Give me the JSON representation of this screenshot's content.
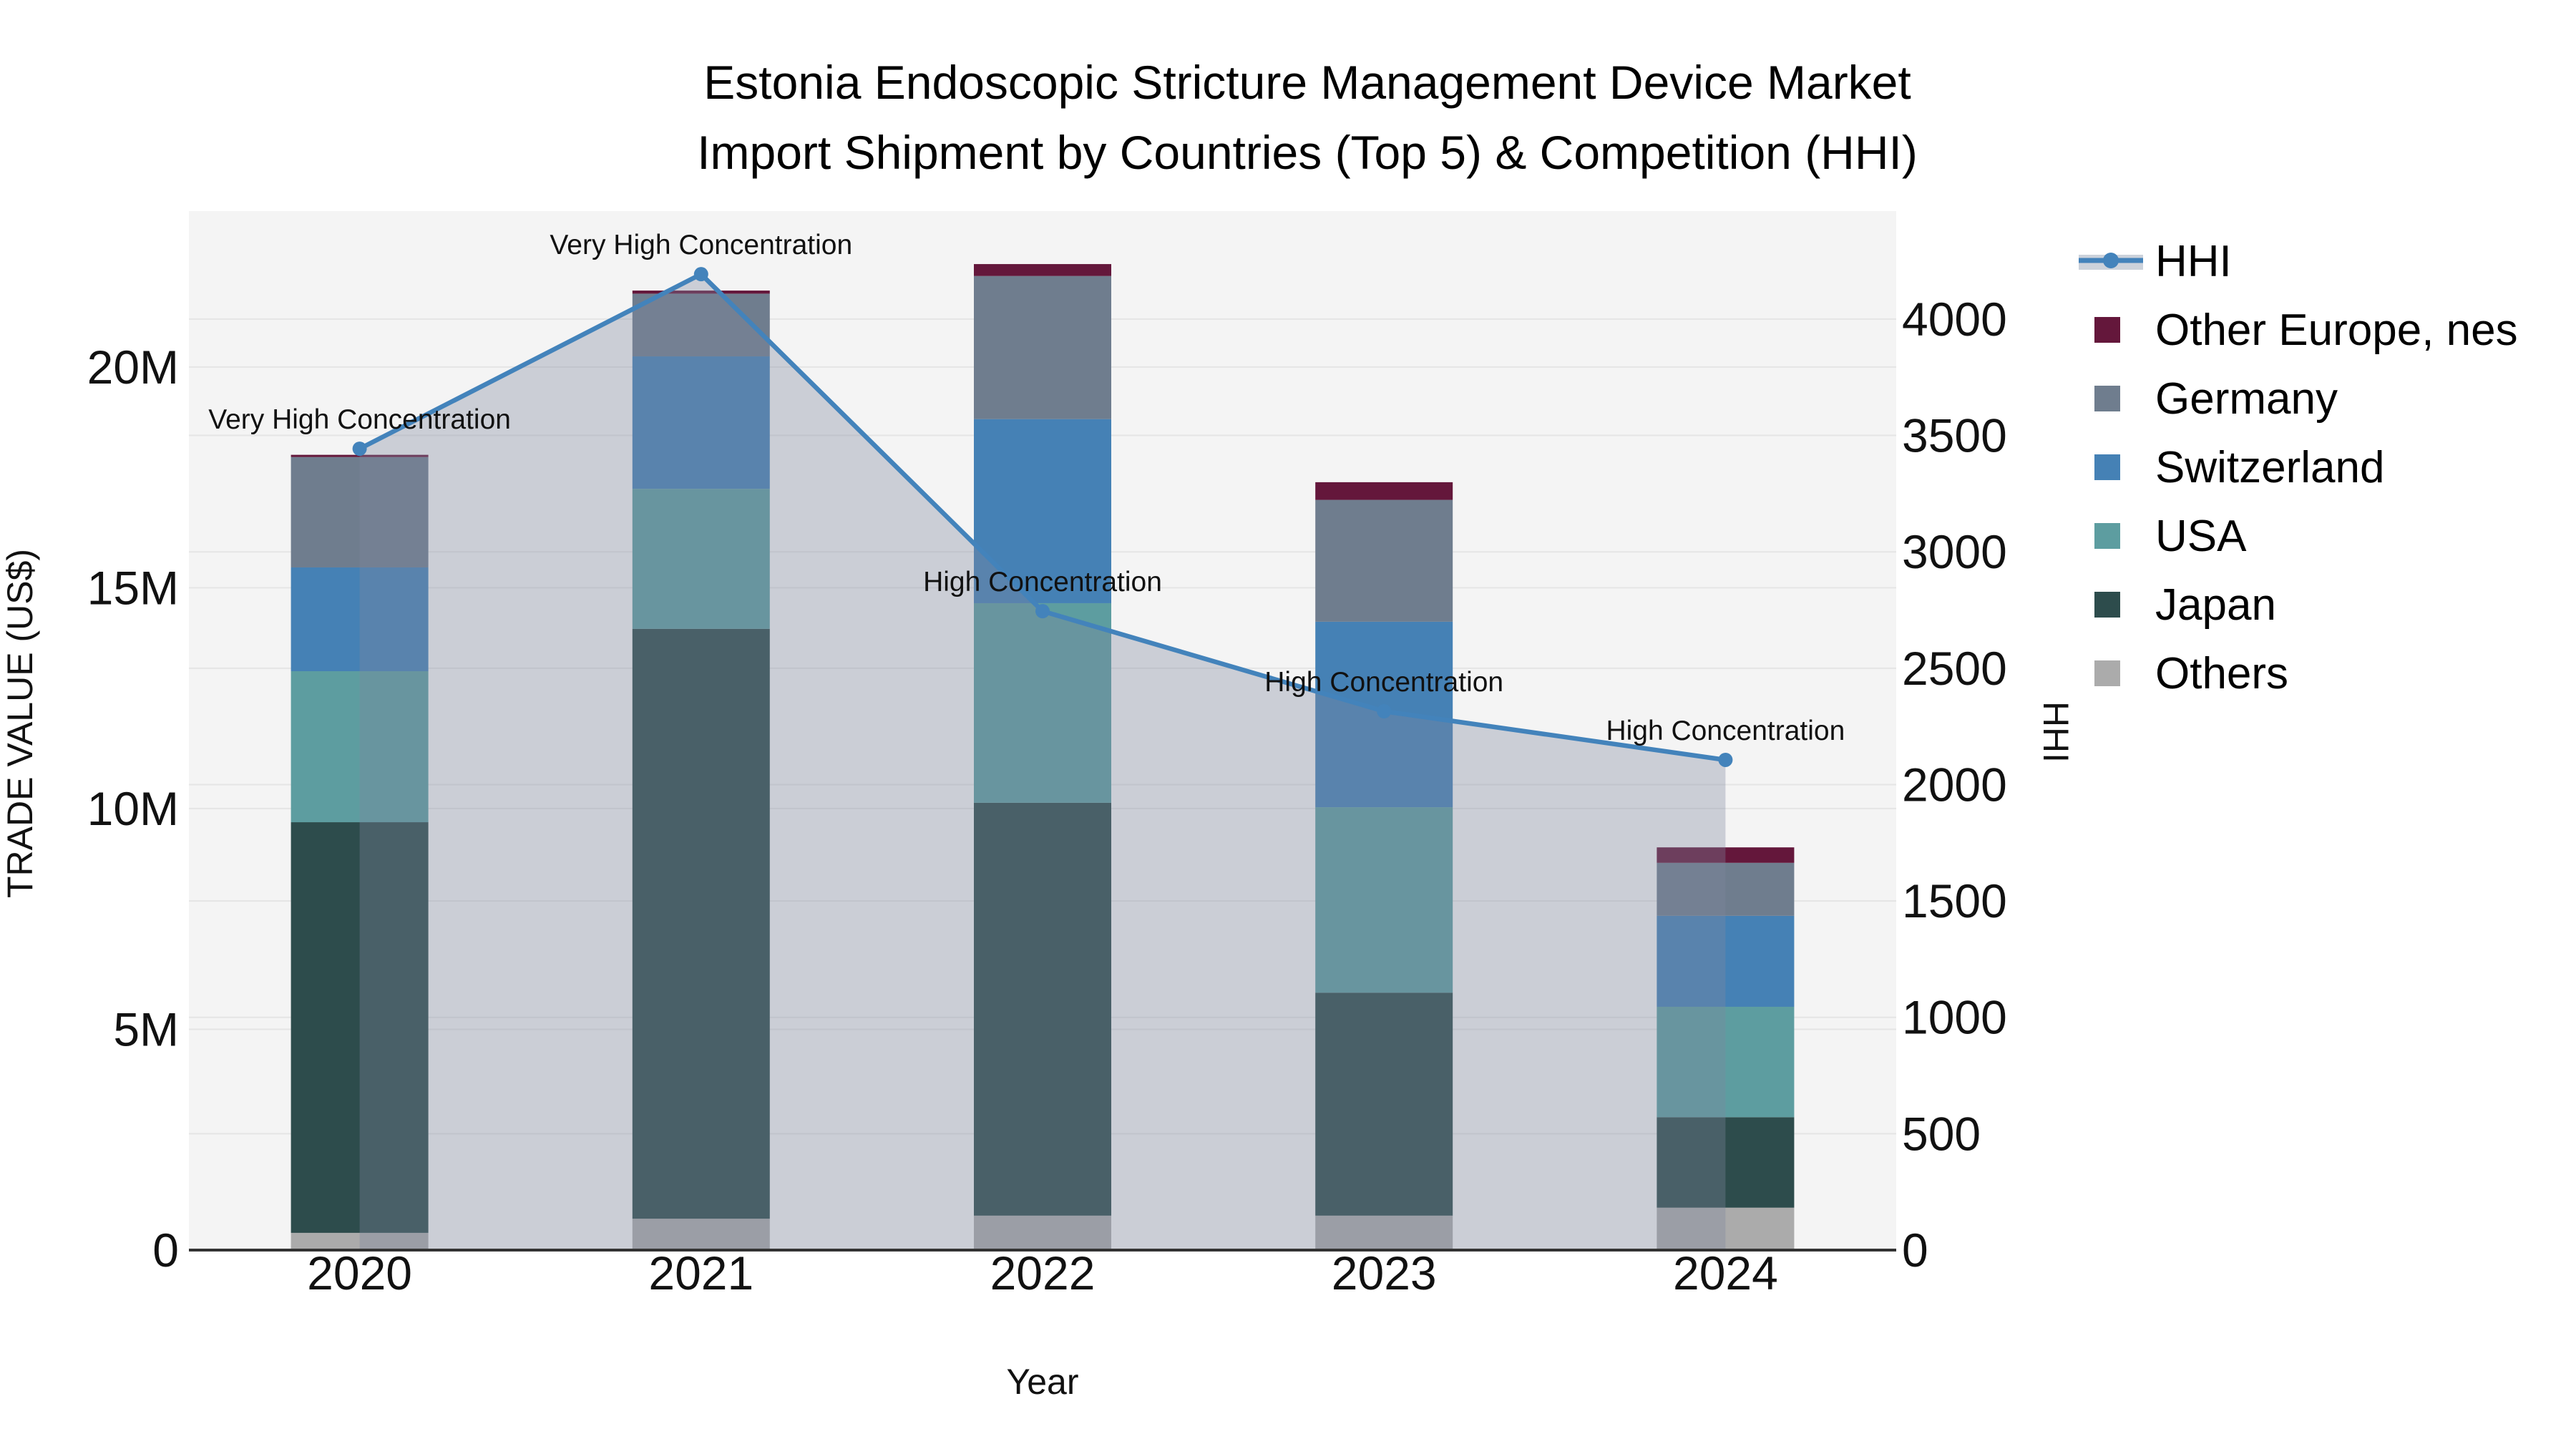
{
  "title": {
    "line1": "Estonia Endoscopic Stricture Management Device Market",
    "line2": "Import Shipment by Countries (Top 5) & Competition (HHI)"
  },
  "chart_data": {
    "type": "stacked-bar+line",
    "unit": "Trade value in US$ millions (left axis); HHI index (right axis)",
    "categories": [
      "2020",
      "2021",
      "2022",
      "2023",
      "2024"
    ],
    "axes": {
      "x": {
        "title": "Year"
      },
      "left": {
        "title": "TRADE VALUE (US$)",
        "tick_labels": [
          "0",
          "5M",
          "10M",
          "15M",
          "20M"
        ],
        "tick_values": [
          0,
          5,
          10,
          15,
          20
        ],
        "max": 23.53
      },
      "right": {
        "title": "HHI",
        "tick_labels": [
          "0",
          "500",
          "1000",
          "1500",
          "2000",
          "2500",
          "3000",
          "3500",
          "4000"
        ],
        "tick_values": [
          0,
          500,
          1000,
          1500,
          2000,
          2500,
          3000,
          3500,
          4000
        ],
        "max": 4464
      }
    },
    "series": [
      {
        "name": "Others",
        "color": "#ababab",
        "values": [
          0.39,
          0.71,
          0.78,
          0.78,
          0.96
        ]
      },
      {
        "name": "Japan",
        "color": "#2d4c4c",
        "values": [
          9.3,
          13.36,
          9.35,
          5.05,
          2.05
        ]
      },
      {
        "name": "USA",
        "color": "#5d9da0",
        "values": [
          3.42,
          3.17,
          4.52,
          4.2,
          2.5
        ]
      },
      {
        "name": "Switzerland",
        "color": "#4581b5",
        "values": [
          2.35,
          3.0,
          4.17,
          4.2,
          2.06
        ]
      },
      {
        "name": "Germany",
        "color": "#6f7d8e",
        "values": [
          2.5,
          1.42,
          3.24,
          2.76,
          1.2
        ]
      },
      {
        "name": "Other Europe, nes",
        "color": "#64173b",
        "values": [
          0.05,
          0.07,
          0.27,
          0.4,
          0.35
        ]
      }
    ],
    "line": {
      "name": "HHI",
      "axis": "right",
      "color": "#4383bb",
      "area_fill": "rgba(125,136,158,0.35)",
      "values": [
        3443,
        4193,
        2745,
        2315,
        2106
      ]
    },
    "annotations": [
      "Very High Concentration",
      "Very High Concentration",
      "High Concentration",
      "High Concentration",
      "High Concentration"
    ],
    "palette": {
      "plot_bg": "#f4f4f4",
      "grid": "#e5e5e5",
      "axis_line": "#333333",
      "legend_hhi_band": "#ccd2db"
    },
    "legend_order": [
      "HHI",
      "Other Europe, nes",
      "Germany",
      "Switzerland",
      "USA",
      "Japan",
      "Others"
    ]
  }
}
